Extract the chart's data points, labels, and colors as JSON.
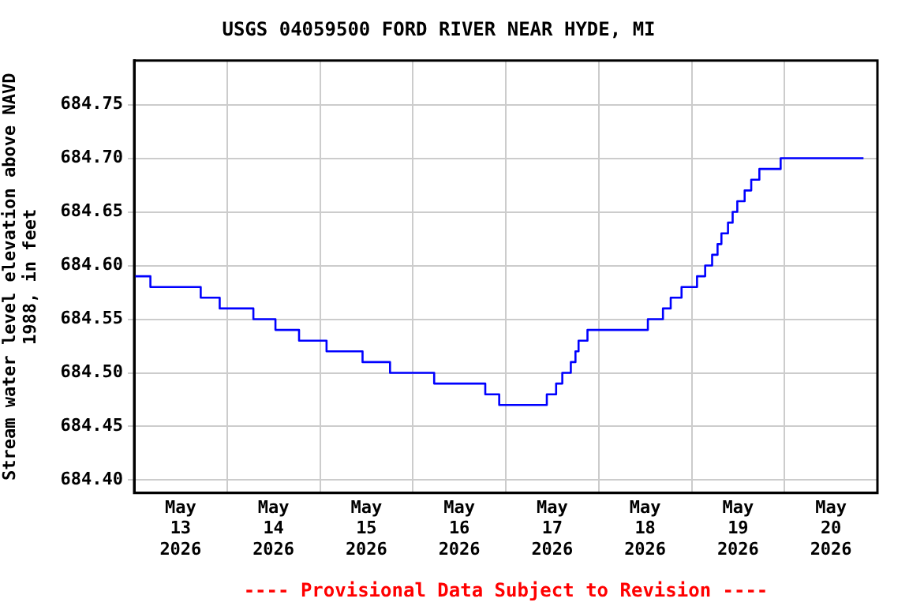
{
  "chart_data": {
    "type": "step",
    "title": "USGS 04059500 FORD RIVER NEAR HYDE, MI",
    "ylabel": "Stream water level elevation above NAVD\n1988, in feet",
    "annotations": [
      "---- Provisional Data Subject to Revision ----"
    ],
    "x": [
      "2026-05-13T00:00",
      "2026-05-13T04:12",
      "2026-05-13T17:12",
      "2026-05-13T22:06",
      "2026-05-14T06:48",
      "2026-05-14T12:30",
      "2026-05-14T18:36",
      "2026-05-15T01:42",
      "2026-05-15T11:00",
      "2026-05-15T18:06",
      "2026-05-16T05:30",
      "2026-05-16T18:42",
      "2026-05-16T22:18",
      "2026-05-17T10:36",
      "2026-05-17T13:00",
      "2026-05-17T14:36",
      "2026-05-17T16:48",
      "2026-05-17T18:00",
      "2026-05-17T18:48",
      "2026-05-17T21:06",
      "2026-05-18T12:42",
      "2026-05-18T16:36",
      "2026-05-18T18:36",
      "2026-05-18T21:24",
      "2026-05-19T01:24",
      "2026-05-19T03:30",
      "2026-05-19T05:18",
      "2026-05-19T06:42",
      "2026-05-19T07:42",
      "2026-05-19T09:24",
      "2026-05-19T10:36",
      "2026-05-19T11:48",
      "2026-05-19T13:42",
      "2026-05-19T15:24",
      "2026-05-19T17:30",
      "2026-05-19T23:00",
      "2026-05-20T20:24"
    ],
    "series": [
      {
        "color": "#0000ff",
        "values": [
          684.59,
          684.58,
          684.57,
          684.56,
          684.55,
          684.54,
          684.53,
          684.52,
          684.51,
          684.5,
          684.49,
          684.48,
          684.47,
          684.48,
          684.49,
          684.5,
          684.51,
          684.52,
          684.53,
          684.54,
          684.55,
          684.56,
          684.57,
          684.58,
          684.59,
          684.6,
          684.61,
          684.62,
          684.63,
          684.64,
          684.65,
          684.66,
          684.67,
          684.68,
          684.69,
          684.7,
          684.7
        ]
      }
    ],
    "xlim": [
      "2026-05-13T00:00",
      "2026-05-21T00:00"
    ],
    "xticks": [
      {
        "value": "2026-05-13T12:00",
        "label": "May\n13\n2026"
      },
      {
        "value": "2026-05-14T00:00",
        "label": null
      },
      {
        "value": "2026-05-14T12:00",
        "label": "May\n14\n2026"
      },
      {
        "value": "2026-05-15T00:00",
        "label": null
      },
      {
        "value": "2026-05-15T12:00",
        "label": "May\n15\n2026"
      },
      {
        "value": "2026-05-16T00:00",
        "label": null
      },
      {
        "value": "2026-05-16T12:00",
        "label": "May\n16\n2026"
      },
      {
        "value": "2026-05-17T00:00",
        "label": null
      },
      {
        "value": "2026-05-17T12:00",
        "label": "May\n17\n2026"
      },
      {
        "value": "2026-05-18T00:00",
        "label": null
      },
      {
        "value": "2026-05-18T12:00",
        "label": "May\n18\n2026"
      },
      {
        "value": "2026-05-19T00:00",
        "label": null
      },
      {
        "value": "2026-05-19T12:00",
        "label": "May\n19\n2026"
      },
      {
        "value": "2026-05-20T00:00",
        "label": null
      },
      {
        "value": "2026-05-20T12:00",
        "label": "May\n20\n2026"
      }
    ],
    "ylim": [
      684.388,
      684.791
    ],
    "yticks": [
      {
        "value": 684.4,
        "label": "684.40"
      },
      {
        "value": 684.45,
        "label": "684.45"
      },
      {
        "value": 684.5,
        "label": "684.50"
      },
      {
        "value": 684.55,
        "label": "684.55"
      },
      {
        "value": 684.6,
        "label": "684.60"
      },
      {
        "value": 684.65,
        "label": "684.65"
      },
      {
        "value": 684.7,
        "label": "684.70"
      },
      {
        "value": 684.75,
        "label": "684.75"
      }
    ],
    "grid": true,
    "legend": false,
    "marker": "none",
    "line_style": "solid"
  }
}
